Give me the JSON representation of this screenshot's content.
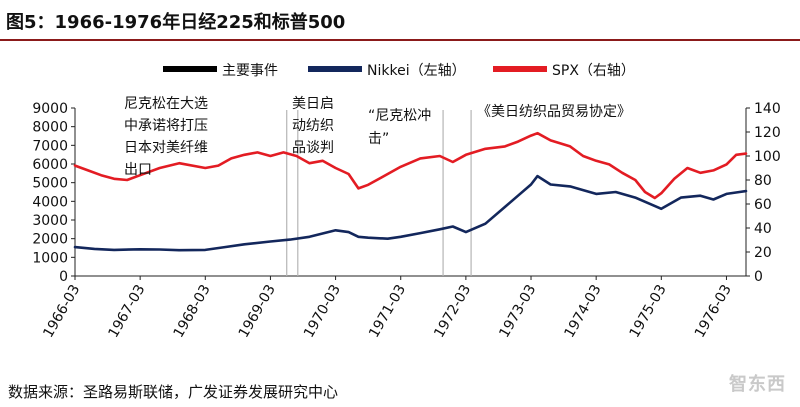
{
  "title": "图5：1966-1976年日经225和标普500",
  "source": "数据来源：圣路易斯联储，广发证券发展研究中心",
  "watermark": "智东西",
  "chart_data": {
    "type": "line",
    "legend": [
      {
        "label": "主要事件",
        "color": "#000000"
      },
      {
        "label": "Nikkei（左轴）",
        "color": "#13275c"
      },
      {
        "label": "SPX（右轴）",
        "color": "#e31c23"
      }
    ],
    "y_left": {
      "min": 0,
      "max": 9000,
      "ticks": [
        0,
        1000,
        2000,
        3000,
        4000,
        5000,
        6000,
        7000,
        8000,
        9000
      ]
    },
    "y_right": {
      "min": 0,
      "max": 140,
      "ticks": [
        0,
        20,
        40,
        60,
        80,
        100,
        120,
        140
      ]
    },
    "x_ticks": [
      "1966-03",
      "1967-03",
      "1968-03",
      "1969-03",
      "1970-03",
      "1971-03",
      "1972-03",
      "1973-03",
      "1974-03",
      "1975-03",
      "1976-03"
    ],
    "x_range": [
      1966.0,
      1976.3
    ],
    "series": [
      {
        "name": "Nikkei（左轴）",
        "axis": "left",
        "color": "#13275c",
        "x": [
          1966.0,
          1966.3,
          1966.6,
          1967.0,
          1967.3,
          1967.6,
          1968.0,
          1968.3,
          1968.6,
          1969.0,
          1969.3,
          1969.6,
          1970.0,
          1970.2,
          1970.35,
          1970.5,
          1970.8,
          1971.0,
          1971.3,
          1971.6,
          1971.8,
          1972.0,
          1972.3,
          1972.6,
          1972.8,
          1973.0,
          1973.1,
          1973.3,
          1973.6,
          1973.8,
          1974.0,
          1974.3,
          1974.6,
          1974.8,
          1975.0,
          1975.3,
          1975.6,
          1975.8,
          1976.0,
          1976.2,
          1976.3
        ],
        "values": [
          1550,
          1450,
          1400,
          1430,
          1420,
          1380,
          1400,
          1550,
          1700,
          1850,
          1950,
          2100,
          2450,
          2350,
          2100,
          2050,
          2000,
          2100,
          2300,
          2500,
          2650,
          2350,
          2800,
          3700,
          4300,
          4900,
          5350,
          4900,
          4800,
          4600,
          4400,
          4500,
          4200,
          3900,
          3600,
          4200,
          4300,
          4100,
          4400,
          4500,
          4550
        ]
      },
      {
        "name": "SPX（右轴）",
        "axis": "right",
        "color": "#e31c23",
        "x": [
          1966.0,
          1966.2,
          1966.4,
          1966.6,
          1966.8,
          1967.0,
          1967.3,
          1967.6,
          1968.0,
          1968.2,
          1968.4,
          1968.6,
          1968.8,
          1969.0,
          1969.2,
          1969.4,
          1969.6,
          1969.8,
          1970.0,
          1970.2,
          1970.35,
          1970.5,
          1970.7,
          1971.0,
          1971.3,
          1971.6,
          1971.8,
          1972.0,
          1972.3,
          1972.6,
          1972.8,
          1973.0,
          1973.1,
          1973.3,
          1973.6,
          1973.8,
          1974.0,
          1974.2,
          1974.4,
          1974.6,
          1974.75,
          1974.9,
          1975.0,
          1975.2,
          1975.4,
          1975.6,
          1975.8,
          1976.0,
          1976.15,
          1976.3
        ],
        "values": [
          92,
          88,
          84,
          81,
          80,
          84,
          90,
          94,
          90,
          92,
          98,
          101,
          103,
          100,
          103,
          100,
          94,
          96,
          90,
          85,
          73,
          76,
          82,
          91,
          98,
          100,
          95,
          101,
          106,
          108,
          112,
          117,
          119,
          113,
          108,
          100,
          96,
          93,
          86,
          80,
          70,
          65,
          69,
          81,
          90,
          86,
          88,
          93,
          101,
          102
        ]
      }
    ],
    "event_lines_x": [
      1969.25,
      1969.42,
      1971.65,
      1972.08
    ],
    "annotations": [
      {
        "text": "尼克松在大选中承诺将打压日本对美纤维出口",
        "lines": [
          "尼克松在大选",
          "中承诺将打压",
          "日本对美纤维",
          "出口"
        ]
      },
      {
        "text": "美日启动纺织品谈判",
        "lines": [
          "美日启",
          "动纺织",
          "品谈判"
        ]
      },
      {
        "text": "“尼克松冲击”",
        "lines": [
          "“尼克松冲",
          "击”"
        ]
      },
      {
        "text": "《美日纺织品贸易协定》",
        "lines": [
          "《美日纺织品贸易协定》"
        ]
      }
    ]
  }
}
